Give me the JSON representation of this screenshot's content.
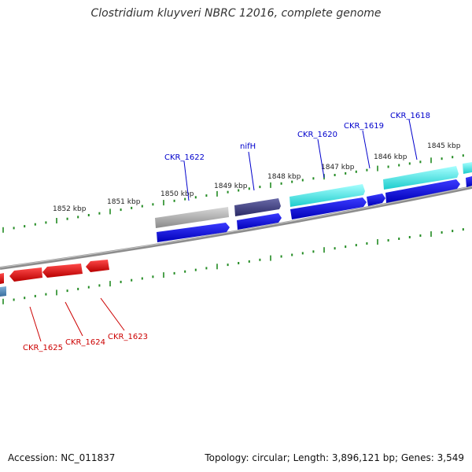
{
  "title": "Clostridium kluyveri NBRC 12016, complete genome",
  "footer": {
    "accession": "Accession: NC_011837",
    "summary": "Topology: circular; Length: 3,896,121 bp; Genes: 3,549"
  },
  "kbp_labels": [
    "1852 kbp",
    "1851 kbp",
    "1850 kbp",
    "1849 kbp",
    "1848 kbp",
    "1847 kbp",
    "1846 kbp",
    "1845 kbp"
  ],
  "gene_labels": {
    "forward": [
      "CKR_1622",
      "nifH",
      "CKR_1620",
      "CKR_1619",
      "CKR_1618"
    ],
    "reverse": [
      "CKR_1625",
      "CKR_1624",
      "CKR_1623"
    ]
  },
  "colors": {
    "forward_label": "#0000cc",
    "reverse_label": "#cc0000",
    "forward_cds": "#0000ee",
    "reverse_cds": "#ee0000",
    "ticks": "#228b22",
    "backbone": "#888888"
  }
}
